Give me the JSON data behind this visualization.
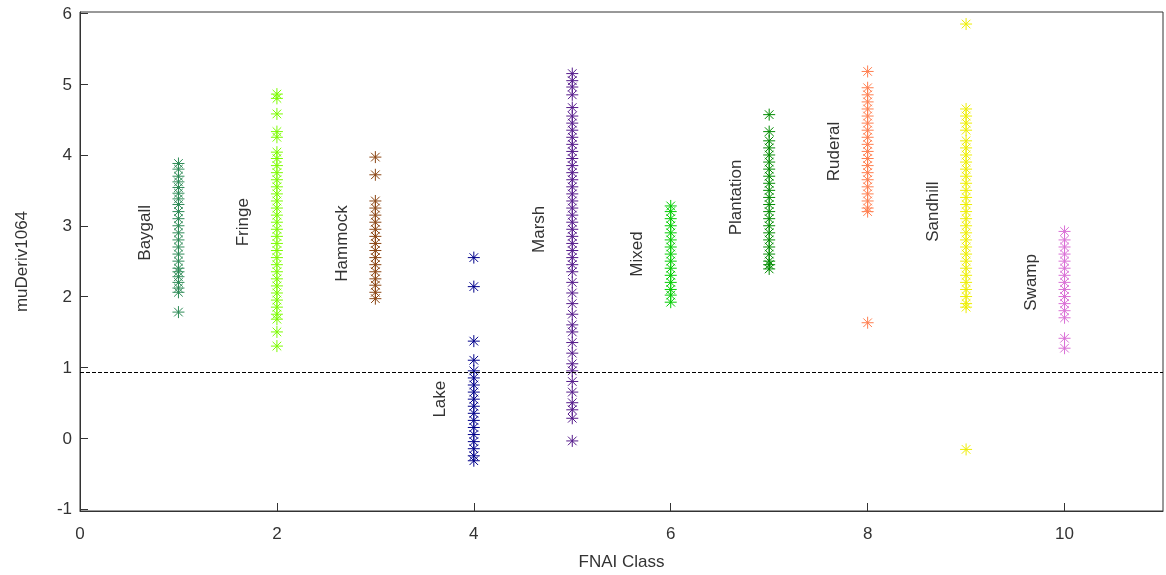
{
  "chart_data": {
    "type": "scatter",
    "xlabel": "FNAI Class",
    "ylabel": "muDeriv1064",
    "xlim": [
      0,
      11
    ],
    "xticks": [
      0,
      2,
      4,
      6,
      8,
      10
    ],
    "ylim": [
      -1.03,
      6.02
    ],
    "yticks": [
      -1,
      0,
      1,
      2,
      3,
      4,
      5,
      6
    ],
    "grid": false,
    "marker": "cross",
    "ref_lines": [
      {
        "axis": "y",
        "value": 0.93,
        "color": "#000000",
        "line_style": "dashed"
      }
    ],
    "series": [
      {
        "name": "Baygall",
        "color": "#2e8b57",
        "x": [
          1,
          1,
          1,
          1,
          1,
          1,
          1,
          1,
          1,
          1,
          1,
          1,
          1,
          1,
          1,
          1,
          1,
          1,
          1,
          1,
          1,
          1,
          1
        ],
        "values": [
          3.88,
          3.8,
          3.7,
          3.62,
          3.54,
          3.46,
          3.38,
          3.3,
          3.2,
          3.1,
          3.0,
          2.9,
          2.8,
          2.7,
          2.6,
          2.5,
          2.4,
          2.35,
          2.28,
          2.2,
          2.12,
          2.06,
          1.78
        ]
      },
      {
        "name": "Fringe",
        "color": "#7cfc00",
        "x": [
          2,
          2,
          2,
          2,
          2,
          2,
          2,
          2,
          2,
          2,
          2,
          2,
          2,
          2,
          2,
          2,
          2,
          2,
          2,
          2,
          2,
          2,
          2,
          2,
          2,
          2,
          2,
          2,
          2,
          2,
          2,
          2
        ],
        "values": [
          4.86,
          4.8,
          4.58,
          4.33,
          4.25,
          4.04,
          3.95,
          3.85,
          3.75,
          3.65,
          3.55,
          3.45,
          3.35,
          3.25,
          3.15,
          3.05,
          2.95,
          2.85,
          2.75,
          2.65,
          2.55,
          2.45,
          2.35,
          2.25,
          2.15,
          2.05,
          1.95,
          1.85,
          1.75,
          1.68,
          1.5,
          1.3
        ]
      },
      {
        "name": "Hammock",
        "color": "#8b4513",
        "x": [
          3,
          3,
          3,
          3,
          3,
          3,
          3,
          3,
          3,
          3,
          3,
          3,
          3,
          3,
          3,
          3,
          3
        ],
        "values": [
          3.97,
          3.72,
          3.35,
          3.25,
          3.15,
          3.05,
          2.95,
          2.85,
          2.75,
          2.65,
          2.55,
          2.45,
          2.35,
          2.25,
          2.16,
          2.06,
          1.97
        ]
      },
      {
        "name": "Lake",
        "color": "#00008b",
        "x": [
          4,
          4,
          4,
          4,
          4,
          4,
          4,
          4,
          4,
          4,
          4,
          4,
          4,
          4,
          4,
          4,
          4,
          4
        ],
        "values": [
          2.55,
          2.14,
          1.37,
          1.1,
          0.95,
          0.85,
          0.75,
          0.65,
          0.55,
          0.45,
          0.35,
          0.25,
          0.15,
          0.05,
          -0.05,
          -0.15,
          -0.25,
          -0.32
        ]
      },
      {
        "name": "Marsh",
        "color": "#551a8b",
        "x": [
          5,
          5,
          5,
          5,
          5,
          5,
          5,
          5,
          5,
          5,
          5,
          5,
          5,
          5,
          5,
          5,
          5,
          5,
          5,
          5,
          5,
          5,
          5,
          5,
          5,
          5,
          5,
          5,
          5,
          5,
          5,
          5,
          5,
          5,
          5,
          5,
          5,
          5,
          5,
          5,
          5,
          5,
          5,
          5
        ],
        "values": [
          5.15,
          5.05,
          4.96,
          4.85,
          4.67,
          4.55,
          4.45,
          4.35,
          4.25,
          4.15,
          4.05,
          3.95,
          3.85,
          3.75,
          3.65,
          3.55,
          3.45,
          3.35,
          3.25,
          3.15,
          3.05,
          2.95,
          2.85,
          2.75,
          2.65,
          2.55,
          2.45,
          2.35,
          2.2,
          2.05,
          1.9,
          1.75,
          1.6,
          1.5,
          1.35,
          1.2,
          1.05,
          0.95,
          0.8,
          0.65,
          0.5,
          0.4,
          0.28,
          -0.04
        ]
      },
      {
        "name": "Mixed",
        "color": "#00cd00",
        "x": [
          6,
          6,
          6,
          6,
          6,
          6,
          6,
          6,
          6,
          6,
          6,
          6,
          6,
          6,
          6
        ],
        "values": [
          3.28,
          3.2,
          3.1,
          3.0,
          2.9,
          2.8,
          2.7,
          2.6,
          2.5,
          2.4,
          2.3,
          2.2,
          2.1,
          2.02,
          1.92
        ]
      },
      {
        "name": "Plantation",
        "color": "#008b00",
        "x": [
          7,
          7,
          7,
          7,
          7,
          7,
          7,
          7,
          7,
          7,
          7,
          7,
          7,
          7,
          7,
          7,
          7,
          7,
          7,
          7,
          7,
          7
        ],
        "values": [
          4.57,
          4.33,
          4.2,
          4.1,
          4.0,
          3.9,
          3.8,
          3.7,
          3.6,
          3.5,
          3.4,
          3.3,
          3.2,
          3.1,
          3.0,
          2.9,
          2.8,
          2.7,
          2.6,
          2.5,
          2.45,
          2.39
        ]
      },
      {
        "name": "Ruderal",
        "color": "#ff7f50",
        "x": [
          8,
          8,
          8,
          8,
          8,
          8,
          8,
          8,
          8,
          8,
          8,
          8,
          8,
          8,
          8,
          8,
          8,
          8,
          8,
          8,
          8
        ],
        "values": [
          5.18,
          4.95,
          4.85,
          4.75,
          4.65,
          4.55,
          4.45,
          4.35,
          4.25,
          4.15,
          4.05,
          3.95,
          3.85,
          3.75,
          3.65,
          3.55,
          3.45,
          3.35,
          3.25,
          3.2,
          1.63
        ]
      },
      {
        "name": "Sandhill",
        "color": "#eeee00",
        "x": [
          9,
          9,
          9,
          9,
          9,
          9,
          9,
          9,
          9,
          9,
          9,
          9,
          9,
          9,
          9,
          9,
          9,
          9,
          9,
          9,
          9,
          9,
          9,
          9,
          9,
          9,
          9,
          9,
          9,
          9,
          9
        ],
        "values": [
          5.85,
          4.65,
          4.55,
          4.45,
          4.35,
          4.2,
          4.1,
          4.0,
          3.9,
          3.8,
          3.7,
          3.6,
          3.5,
          3.4,
          3.3,
          3.2,
          3.1,
          3.0,
          2.9,
          2.8,
          2.7,
          2.6,
          2.5,
          2.4,
          2.3,
          2.2,
          2.1,
          2.0,
          1.9,
          1.85,
          -0.16
        ]
      },
      {
        "name": "Swamp",
        "color": "#da70d6",
        "x": [
          10,
          10,
          10,
          10,
          10,
          10,
          10,
          10,
          10,
          10,
          10,
          10,
          10,
          10,
          10
        ],
        "values": [
          2.92,
          2.8,
          2.7,
          2.6,
          2.5,
          2.4,
          2.3,
          2.2,
          2.1,
          2.0,
          1.9,
          1.8,
          1.7,
          1.41,
          1.27
        ]
      }
    ]
  }
}
